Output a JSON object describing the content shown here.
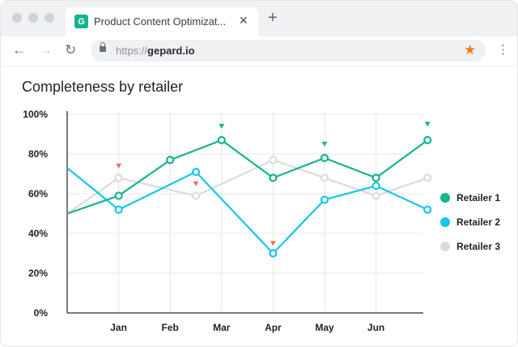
{
  "browser": {
    "tab_title": "Product Content Optimizat...",
    "favicon_letter": "G",
    "close_symbol": "✕",
    "new_tab_symbol": "+",
    "url_scheme": "https://",
    "url_host": "gepard.io"
  },
  "colors": {
    "retailer1": "#14b48f",
    "retailer2": "#17c7ea",
    "retailer3": "#dcdcdc",
    "up_marker": "#14b48f",
    "down_marker": "#ef6b6b"
  },
  "chart_data": {
    "type": "line",
    "title": "Completeness by retailer",
    "categories": [
      "Jan",
      "Feb",
      "Mar",
      "Apr",
      "May",
      "Jun"
    ],
    "y_ticks": [
      "0%",
      "20%",
      "40%",
      "60%",
      "80%",
      "100%"
    ],
    "ylim": [
      0,
      100
    ],
    "legend_position": "right",
    "series": [
      {
        "name": "Retailer 1",
        "color_key": "retailer1",
        "x": [
          0.0,
          1.0,
          2.0,
          3.0,
          4.0,
          5.0,
          6.0,
          7.0
        ],
        "values": [
          50,
          59,
          77,
          87,
          68,
          78,
          68,
          87
        ],
        "hollow": [
          false,
          true,
          true,
          true,
          true,
          true,
          true,
          true
        ]
      },
      {
        "name": "Retailer 2",
        "color_key": "retailer2",
        "x": [
          0.0,
          1.0,
          2.5,
          4.0,
          5.0,
          6.0,
          7.0
        ],
        "values": [
          73,
          52,
          71,
          30,
          57,
          64,
          52
        ],
        "hollow": [
          false,
          true,
          true,
          true,
          true,
          true,
          true
        ]
      },
      {
        "name": "Retailer 3",
        "color_key": "retailer3",
        "x": [
          0.0,
          1.0,
          2.5,
          4.0,
          5.0,
          6.0,
          7.0
        ],
        "values": [
          50,
          68,
          59,
          77,
          68,
          59,
          68
        ],
        "hollow": [
          false,
          true,
          true,
          true,
          true,
          true,
          true
        ]
      }
    ],
    "markers": [
      {
        "x": 1.0,
        "y": 74,
        "dir": "down"
      },
      {
        "x": 2.5,
        "y": 65,
        "dir": "down"
      },
      {
        "x": 3.0,
        "y": 94,
        "dir": "up"
      },
      {
        "x": 4.0,
        "y": 35,
        "dir": "down"
      },
      {
        "x": 5.0,
        "y": 85,
        "dir": "up"
      },
      {
        "x": 7.0,
        "y": 95,
        "dir": "up"
      }
    ]
  }
}
